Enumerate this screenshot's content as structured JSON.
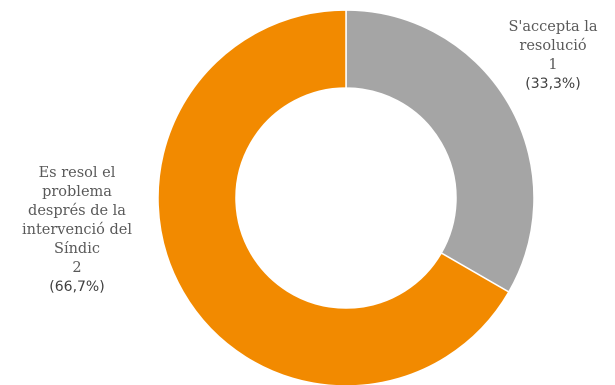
{
  "chart_data": {
    "type": "pie",
    "variant": "donut",
    "title": "",
    "series": [
      {
        "name_lines": [
          "S'accepta la",
          "resolució"
        ],
        "value": 1,
        "value_label": "1",
        "percent_label": "(33,3%)",
        "color": "#a5a5a5"
      },
      {
        "name_lines": [
          "Es resol el",
          "problema",
          "després de la",
          "intervenció  del",
          "Síndic"
        ],
        "value": 2,
        "value_label": "2",
        "percent_label": "(66,7%)",
        "color": "#f28a00"
      }
    ],
    "legend": "none"
  }
}
